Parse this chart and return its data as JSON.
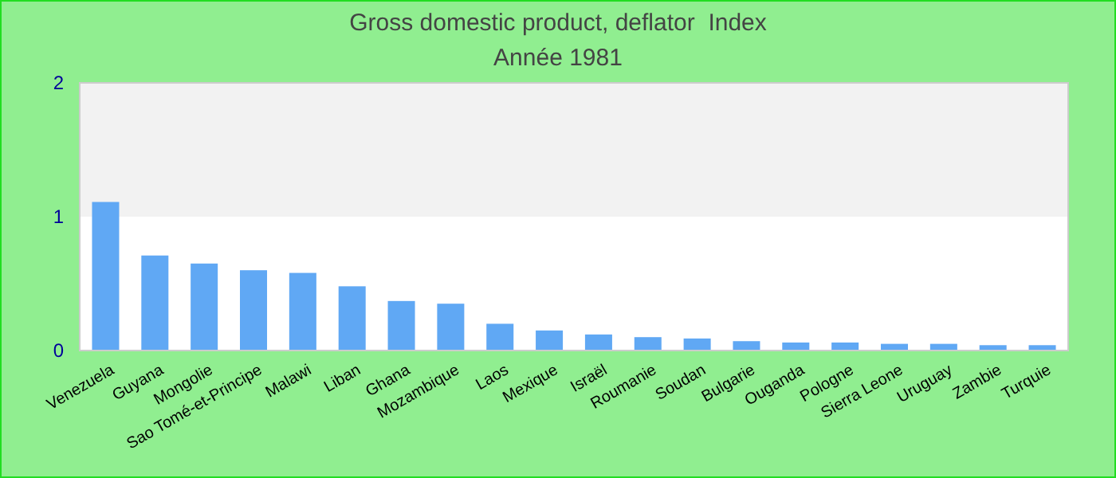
{
  "chart_data": {
    "type": "bar",
    "title": "Gross domestic product, deflator  Index",
    "subtitle": "Année 1981",
    "categories": [
      "Venezuela",
      "Guyana",
      "Mongolie",
      "Sao Tomé-et-Principe",
      "Malawi",
      "Liban",
      "Ghana",
      "Mozambique",
      "Laos",
      "Mexique",
      "Israël",
      "Roumanie",
      "Soudan",
      "Bulgarie",
      "Ouganda",
      "Pologne",
      "Sierra Leone",
      "Uruguay",
      "Zambie",
      "Turquie"
    ],
    "values": [
      1.11,
      0.71,
      0.65,
      0.6,
      0.58,
      0.48,
      0.37,
      0.35,
      0.2,
      0.15,
      0.12,
      0.1,
      0.09,
      0.07,
      0.06,
      0.06,
      0.05,
      0.05,
      0.04,
      0.04
    ],
    "color": "#60a8f4",
    "ylim": [
      0,
      2
    ],
    "yticks": [
      0,
      1,
      2
    ],
    "bands": [
      {
        "axis": "y",
        "from": 1,
        "to": 2,
        "color": "#f2f2f2"
      }
    ],
    "grid": false
  }
}
